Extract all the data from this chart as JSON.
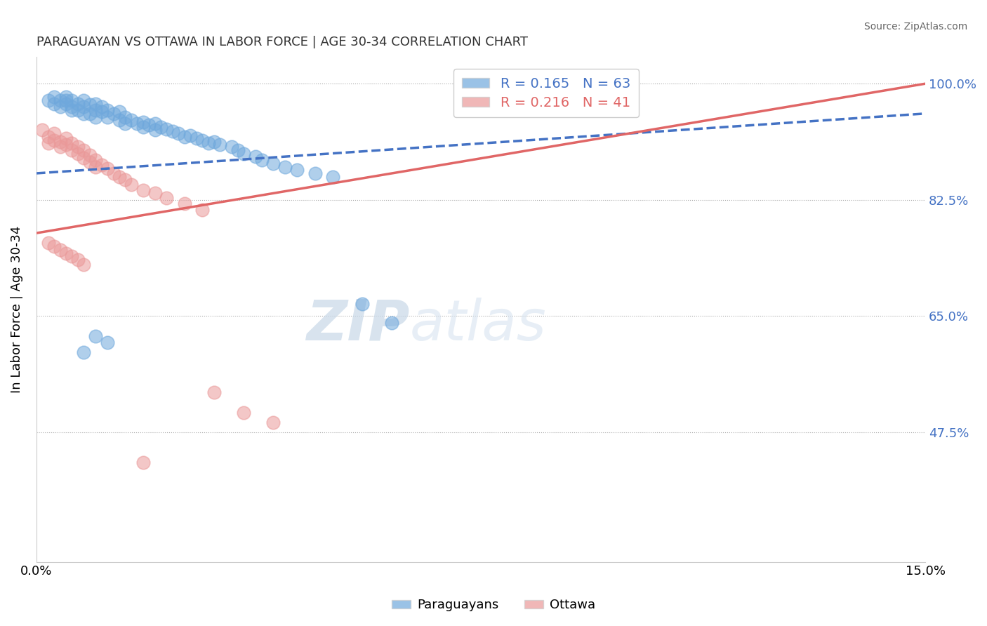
{
  "title": "PARAGUAYAN VS OTTAWA IN LABOR FORCE | AGE 30-34 CORRELATION CHART",
  "source": "Source: ZipAtlas.com",
  "ylabel": "In Labor Force | Age 30-34",
  "xlim": [
    0.0,
    0.15
  ],
  "ylim": [
    0.28,
    1.04
  ],
  "yticks": [
    0.475,
    0.65,
    0.825,
    1.0
  ],
  "ytick_labels": [
    "47.5%",
    "65.0%",
    "82.5%",
    "100.0%"
  ],
  "xticks": [
    0.0,
    0.15
  ],
  "xtick_labels": [
    "0.0%",
    "15.0%"
  ],
  "blue_R": 0.165,
  "blue_N": 63,
  "pink_R": 0.216,
  "pink_N": 41,
  "blue_color": "#6fa8dc",
  "pink_color": "#ea9999",
  "blue_line_color": "#4472c4",
  "pink_line_color": "#e06666",
  "legend_label_blue": "Paraguayans",
  "legend_label_pink": "Ottawa",
  "watermark_zip": "ZIP",
  "watermark_atlas": "atlas",
  "blue_line_x0": 0.0,
  "blue_line_y0": 0.865,
  "blue_line_x1": 0.15,
  "blue_line_y1": 0.955,
  "pink_line_x0": 0.0,
  "pink_line_y0": 0.775,
  "pink_line_x1": 0.15,
  "pink_line_y1": 1.0,
  "blue_scatter_x": [
    0.002,
    0.003,
    0.003,
    0.004,
    0.004,
    0.005,
    0.005,
    0.005,
    0.006,
    0.006,
    0.006,
    0.007,
    0.007,
    0.008,
    0.008,
    0.008,
    0.009,
    0.009,
    0.01,
    0.01,
    0.01,
    0.011,
    0.011,
    0.012,
    0.012,
    0.013,
    0.014,
    0.014,
    0.015,
    0.015,
    0.016,
    0.017,
    0.018,
    0.018,
    0.019,
    0.02,
    0.02,
    0.021,
    0.022,
    0.023,
    0.024,
    0.025,
    0.026,
    0.027,
    0.028,
    0.029,
    0.03,
    0.031,
    0.033,
    0.034,
    0.035,
    0.037,
    0.038,
    0.04,
    0.042,
    0.044,
    0.047,
    0.05,
    0.055,
    0.06,
    0.01,
    0.012,
    0.008
  ],
  "blue_scatter_y": [
    0.975,
    0.98,
    0.97,
    0.975,
    0.965,
    0.98,
    0.975,
    0.97,
    0.975,
    0.965,
    0.96,
    0.97,
    0.96,
    0.975,
    0.965,
    0.955,
    0.968,
    0.955,
    0.97,
    0.96,
    0.95,
    0.965,
    0.958,
    0.96,
    0.95,
    0.955,
    0.958,
    0.945,
    0.95,
    0.94,
    0.945,
    0.94,
    0.942,
    0.935,
    0.938,
    0.94,
    0.93,
    0.935,
    0.932,
    0.928,
    0.925,
    0.92,
    0.922,
    0.918,
    0.915,
    0.91,
    0.912,
    0.908,
    0.905,
    0.9,
    0.895,
    0.89,
    0.885,
    0.88,
    0.875,
    0.87,
    0.865,
    0.86,
    0.668,
    0.64,
    0.62,
    0.61,
    0.595
  ],
  "pink_scatter_x": [
    0.001,
    0.002,
    0.002,
    0.003,
    0.003,
    0.004,
    0.004,
    0.005,
    0.005,
    0.006,
    0.006,
    0.007,
    0.007,
    0.008,
    0.008,
    0.009,
    0.009,
    0.01,
    0.01,
    0.011,
    0.012,
    0.013,
    0.014,
    0.015,
    0.016,
    0.018,
    0.02,
    0.022,
    0.025,
    0.028,
    0.002,
    0.003,
    0.004,
    0.005,
    0.006,
    0.007,
    0.008,
    0.03,
    0.035,
    0.04,
    0.018
  ],
  "pink_scatter_y": [
    0.93,
    0.92,
    0.91,
    0.925,
    0.915,
    0.912,
    0.905,
    0.918,
    0.908,
    0.91,
    0.9,
    0.905,
    0.895,
    0.9,
    0.888,
    0.892,
    0.882,
    0.885,
    0.875,
    0.878,
    0.872,
    0.865,
    0.86,
    0.855,
    0.848,
    0.84,
    0.835,
    0.828,
    0.82,
    0.81,
    0.76,
    0.755,
    0.75,
    0.745,
    0.74,
    0.735,
    0.728,
    0.535,
    0.505,
    0.49,
    0.43
  ]
}
